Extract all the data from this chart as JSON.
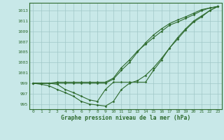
{
  "xlabel": "Graphe pression niveau de la mer (hPa)",
  "background_color": "#c8e8e8",
  "grid_color": "#a0c8c8",
  "line_color": "#2d6a2d",
  "spine_color": "#2d6a2d",
  "x_hours": [
    0,
    1,
    2,
    3,
    4,
    5,
    6,
    7,
    8,
    9,
    10,
    11,
    12,
    13,
    14,
    15,
    16,
    17,
    18,
    19,
    20,
    21,
    22,
    23
  ],
  "ylim": [
    994.0,
    1014.5
  ],
  "yticks": [
    995,
    997,
    999,
    1001,
    1003,
    1005,
    1007,
    1009,
    1011,
    1013
  ],
  "line1": [
    999.0,
    999.0,
    999.0,
    999.2,
    999.2,
    999.2,
    999.2,
    999.2,
    999.2,
    999.2,
    1000.0,
    1002.0,
    1003.5,
    1005.2,
    1006.5,
    1007.8,
    1009.0,
    1010.2,
    1010.8,
    1011.5,
    1012.2,
    1013.0,
    1013.5,
    1013.8
  ],
  "line2": [
    999.0,
    999.0,
    999.0,
    998.8,
    997.8,
    997.2,
    996.5,
    995.8,
    995.5,
    997.8,
    999.2,
    999.2,
    999.2,
    999.2,
    999.2,
    1001.5,
    1003.5,
    1005.8,
    1007.8,
    1009.5,
    1011.0,
    1012.0,
    1013.0,
    1013.8
  ],
  "line3": [
    999.0,
    998.8,
    998.5,
    997.8,
    997.2,
    996.5,
    995.5,
    995.0,
    994.8,
    994.6,
    995.5,
    997.8,
    999.0,
    999.5,
    1000.5,
    1002.0,
    1003.8,
    1005.8,
    1007.5,
    1009.3,
    1010.8,
    1011.8,
    1013.0,
    1013.8
  ],
  "line4": [
    999.0,
    999.0,
    999.0,
    999.0,
    999.0,
    999.0,
    999.0,
    999.0,
    999.0,
    999.0,
    999.8,
    1001.5,
    1003.0,
    1005.0,
    1006.8,
    1008.3,
    1009.5,
    1010.5,
    1011.2,
    1011.8,
    1012.5,
    1013.2,
    1013.5,
    1013.8
  ]
}
